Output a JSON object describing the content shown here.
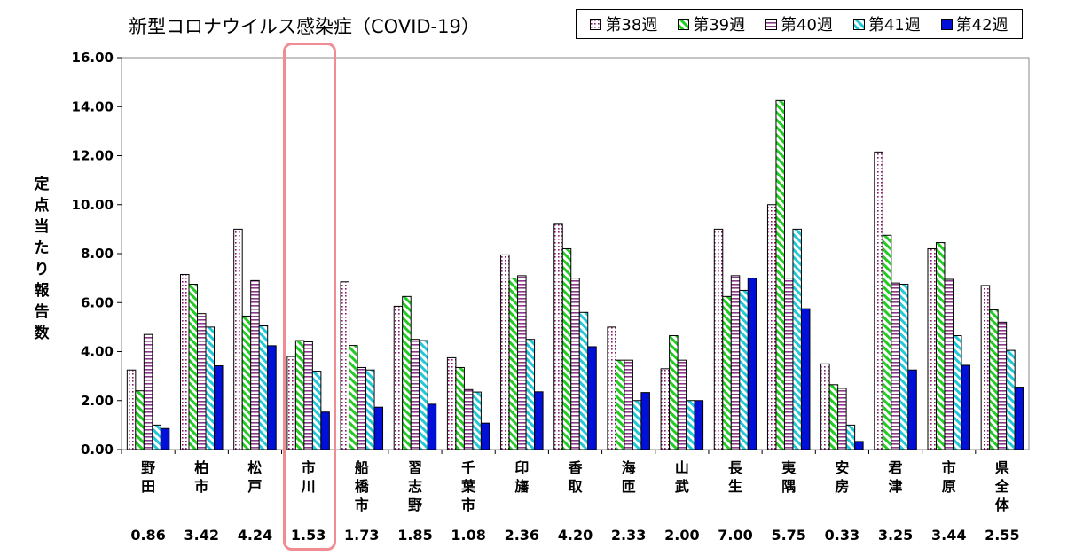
{
  "chart_data": {
    "type": "bar",
    "title": "新型コロナウイルス感染症（COVID-19）",
    "ylabel": "定点当たり報告数",
    "ylim": [
      0,
      16
    ],
    "yticks": [
      "0.00",
      "2.00",
      "4.00",
      "6.00",
      "8.00",
      "10.00",
      "12.00",
      "14.00",
      "16.00"
    ],
    "grid": false,
    "legend_position": "top-right",
    "categories": [
      "野田",
      "柏市",
      "松戸",
      "市川",
      "船橋市",
      "習志野",
      "千葉市",
      "印旛",
      "香取",
      "海匝",
      "山武",
      "長生",
      "夷隅",
      "安房",
      "君津",
      "市原",
      "県全体"
    ],
    "series": [
      {
        "name": "第38週",
        "color": "#8b1a6b",
        "pattern": "dots",
        "values": [
          3.25,
          7.15,
          9.0,
          3.8,
          6.85,
          5.85,
          3.75,
          7.95,
          9.2,
          5.0,
          3.3,
          9.0,
          10.0,
          3.5,
          12.15,
          8.2,
          6.7
        ]
      },
      {
        "name": "第39週",
        "color": "#22cc22",
        "pattern": "diagonal",
        "values": [
          2.4,
          6.75,
          5.45,
          4.45,
          4.25,
          6.25,
          3.35,
          7.0,
          8.2,
          3.65,
          4.65,
          6.25,
          14.25,
          2.65,
          8.75,
          8.45,
          5.7
        ]
      },
      {
        "name": "第40週",
        "color": "#8b3a8b",
        "pattern": "horizontal",
        "values": [
          4.7,
          5.55,
          6.9,
          4.4,
          3.35,
          4.5,
          2.45,
          7.1,
          7.0,
          3.65,
          3.65,
          7.1,
          7.0,
          2.5,
          6.8,
          6.95,
          5.2
        ]
      },
      {
        "name": "第41週",
        "color": "#22c8d8",
        "pattern": "diagonal",
        "values": [
          1.0,
          5.0,
          5.05,
          3.2,
          3.25,
          4.45,
          2.35,
          4.5,
          5.6,
          2.0,
          2.0,
          6.5,
          9.0,
          1.0,
          6.75,
          4.65,
          4.05
        ]
      },
      {
        "name": "第42週",
        "color": "#0010d8",
        "pattern": "solid",
        "values": [
          0.86,
          3.42,
          4.24,
          1.53,
          1.73,
          1.85,
          1.08,
          2.36,
          4.2,
          2.33,
          2.0,
          7.0,
          5.75,
          0.33,
          3.25,
          3.44,
          2.55
        ]
      }
    ],
    "latest_values": [
      "0.86",
      "3.42",
      "4.24",
      "1.53",
      "1.73",
      "1.85",
      "1.08",
      "2.36",
      "4.20",
      "2.33",
      "2.00",
      "7.00",
      "5.75",
      "0.33",
      "3.25",
      "3.44",
      "2.55"
    ],
    "highlight_category": "市川",
    "highlight_color": "#f08d93"
  }
}
